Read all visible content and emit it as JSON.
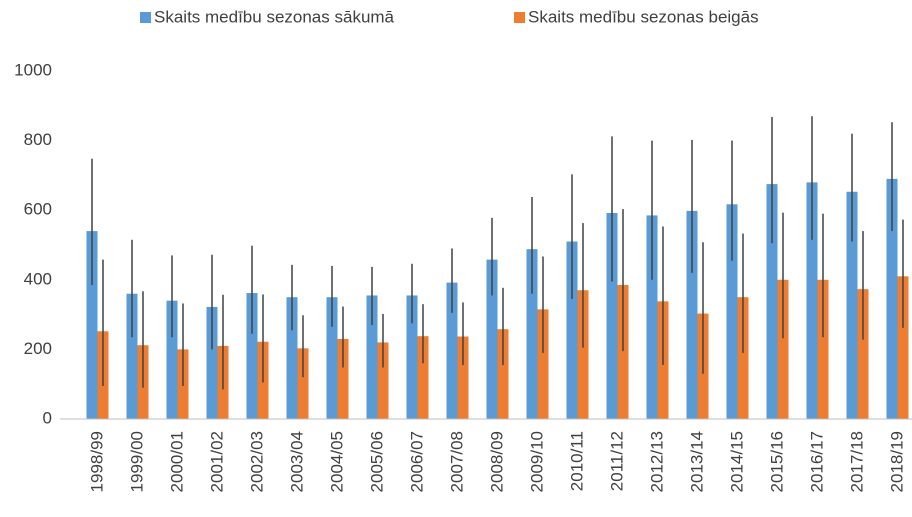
{
  "chart_data": {
    "type": "bar",
    "categories": [
      "1998/99",
      "1999/00",
      "2000/01",
      "2001/02",
      "2002/03",
      "2003/04",
      "2004/05",
      "2005/06",
      "2006/07",
      "2007/08",
      "2008/09",
      "2009/10",
      "2010/11",
      "2011/12",
      "2012/13",
      "2013/14",
      "2014/15",
      "2015/16",
      "2016/17",
      "2017/18",
      "2018/19"
    ],
    "series": [
      {
        "name": "Skaits medību sezonas sākumā",
        "color": "#5b9bd5",
        "values": [
          540,
          360,
          340,
          322,
          362,
          350,
          350,
          355,
          355,
          392,
          458,
          488,
          510,
          592,
          585,
          598,
          617,
          675,
          680,
          653,
          690
        ],
        "low": [
          385,
          235,
          235,
          200,
          245,
          255,
          265,
          270,
          275,
          305,
          355,
          360,
          345,
          395,
          400,
          420,
          455,
          505,
          515,
          510,
          540
        ],
        "high": [
          748,
          515,
          470,
          472,
          498,
          443,
          440,
          437,
          446,
          490,
          578,
          638,
          703,
          812,
          800,
          802,
          800,
          868,
          870,
          820,
          853
        ]
      },
      {
        "name": "Skaits medību sezonas beigās",
        "color": "#ed7d31",
        "values": [
          252,
          212,
          200,
          210,
          222,
          203,
          230,
          220,
          238,
          237,
          258,
          315,
          370,
          385,
          338,
          303,
          350,
          400,
          400,
          373,
          410
        ],
        "low": [
          95,
          90,
          95,
          85,
          105,
          120,
          148,
          148,
          160,
          155,
          155,
          190,
          205,
          195,
          155,
          130,
          190,
          232,
          235,
          228,
          262
        ],
        "high": [
          458,
          367,
          332,
          357,
          358,
          298,
          323,
          302,
          330,
          335,
          377,
          467,
          563,
          603,
          553,
          508,
          533,
          593,
          590,
          540,
          573
        ]
      }
    ],
    "ylim": [
      0,
      1000
    ],
    "yticks": [
      0,
      200,
      400,
      600,
      800,
      1000
    ],
    "grid": false,
    "legend": "top"
  }
}
